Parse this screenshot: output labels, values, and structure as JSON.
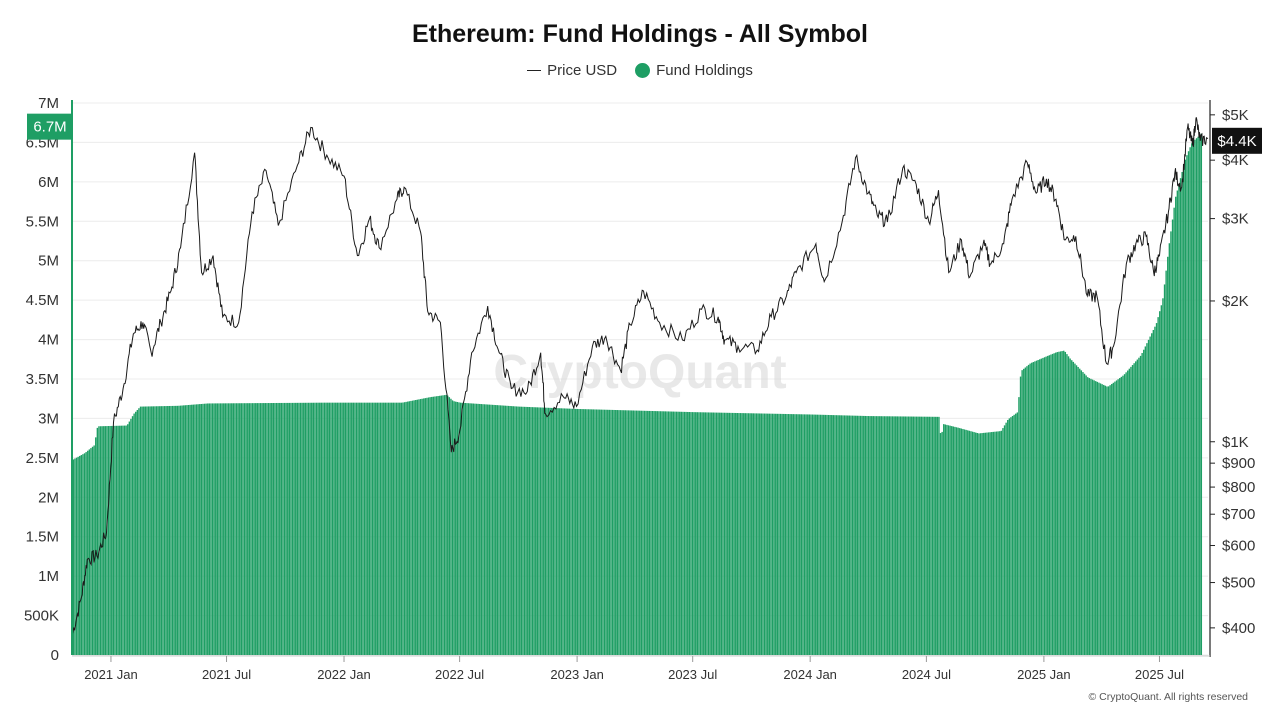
{
  "title": "Ethereum: Fund Holdings - All Symbol",
  "legend": {
    "price_label": "Price USD",
    "holdings_label": "Fund Holdings"
  },
  "watermark": "CryptoQuant",
  "copyright": "© CryptoQuant. All rights reserved",
  "colors": {
    "holdings": "#1e9e64",
    "price": "#1a1a1a",
    "grid": "#ececec",
    "axis": "#222222",
    "left_badge_bg": "#1e9e64",
    "right_badge_bg": "#111111"
  },
  "chart_data": {
    "type": "bar+line",
    "title": "Ethereum: Fund Holdings - All Symbol",
    "x_start": "2020-11-01",
    "x_end": "2025-09-15",
    "x_ticks": [
      {
        "date": "2021-01-01",
        "label": "2021 Jan"
      },
      {
        "date": "2021-07-01",
        "label": "2021 Jul"
      },
      {
        "date": "2022-01-01",
        "label": "2022 Jan"
      },
      {
        "date": "2022-07-01",
        "label": "2022 Jul"
      },
      {
        "date": "2023-01-01",
        "label": "2023 Jan"
      },
      {
        "date": "2023-07-01",
        "label": "2023 Jul"
      },
      {
        "date": "2024-01-01",
        "label": "2024 Jan"
      },
      {
        "date": "2024-07-01",
        "label": "2024 Jul"
      },
      {
        "date": "2025-01-01",
        "label": "2025 Jan"
      },
      {
        "date": "2025-07-01",
        "label": "2025 Jul"
      }
    ],
    "left_axis": {
      "name": "Fund Holdings",
      "scale": "linear",
      "range": [
        0,
        7000000
      ],
      "ticks": [
        {
          "value": 0,
          "label": "0"
        },
        {
          "value": 500000,
          "label": "500K"
        },
        {
          "value": 1000000,
          "label": "1M"
        },
        {
          "value": 1500000,
          "label": "1.5M"
        },
        {
          "value": 2000000,
          "label": "2M"
        },
        {
          "value": 2500000,
          "label": "2.5M"
        },
        {
          "value": 3000000,
          "label": "3M"
        },
        {
          "value": 3500000,
          "label": "3.5M"
        },
        {
          "value": 4000000,
          "label": "4M"
        },
        {
          "value": 4500000,
          "label": "4.5M"
        },
        {
          "value": 5000000,
          "label": "5M"
        },
        {
          "value": 5500000,
          "label": "5.5M"
        },
        {
          "value": 6000000,
          "label": "6M"
        },
        {
          "value": 6500000,
          "label": "6.5M"
        },
        {
          "value": 7000000,
          "label": "7M"
        }
      ],
      "current_value": 6700000,
      "current_label": "6.7M"
    },
    "right_axis": {
      "name": "Price USD",
      "scale": "log",
      "range": [
        350,
        5300
      ],
      "ticks": [
        {
          "value": 400,
          "label": "$400"
        },
        {
          "value": 500,
          "label": "$500"
        },
        {
          "value": 600,
          "label": "$600"
        },
        {
          "value": 700,
          "label": "$700"
        },
        {
          "value": 800,
          "label": "$800"
        },
        {
          "value": 900,
          "label": "$900"
        },
        {
          "value": 1000,
          "label": "$1K"
        },
        {
          "value": 2000,
          "label": "$2K"
        },
        {
          "value": 3000,
          "label": "$3K"
        },
        {
          "value": 4000,
          "label": "$4K"
        },
        {
          "value": 5000,
          "label": "$5K"
        }
      ],
      "current_value": 4400,
      "current_label": "$4.4K"
    },
    "series": [
      {
        "name": "Fund Holdings",
        "type": "bar",
        "axis": "left",
        "points": [
          [
            "2020-11-02",
            2480000
          ],
          [
            "2020-11-20",
            2560000
          ],
          [
            "2020-12-05",
            2660000
          ],
          [
            "2020-12-10",
            2900000
          ],
          [
            "2021-01-25",
            2910000
          ],
          [
            "2021-02-05",
            3060000
          ],
          [
            "2021-02-15",
            3150000
          ],
          [
            "2021-04-15",
            3160000
          ],
          [
            "2021-06-01",
            3190000
          ],
          [
            "2021-12-01",
            3200000
          ],
          [
            "2022-04-01",
            3200000
          ],
          [
            "2022-05-15",
            3270000
          ],
          [
            "2022-06-10",
            3300000
          ],
          [
            "2022-06-20",
            3220000
          ],
          [
            "2022-07-01",
            3200000
          ],
          [
            "2022-10-01",
            3150000
          ],
          [
            "2023-01-01",
            3120000
          ],
          [
            "2023-07-01",
            3080000
          ],
          [
            "2024-01-01",
            3050000
          ],
          [
            "2024-04-01",
            3030000
          ],
          [
            "2024-07-20",
            3020000
          ],
          [
            "2024-07-23",
            2720000
          ],
          [
            "2024-07-26",
            2930000
          ],
          [
            "2024-08-20",
            2880000
          ],
          [
            "2024-09-20",
            2810000
          ],
          [
            "2024-10-25",
            2840000
          ],
          [
            "2024-11-05",
            2990000
          ],
          [
            "2024-11-20",
            3080000
          ],
          [
            "2024-11-25",
            3600000
          ],
          [
            "2024-12-10",
            3700000
          ],
          [
            "2025-01-05",
            3790000
          ],
          [
            "2025-01-20",
            3840000
          ],
          [
            "2025-02-01",
            3860000
          ],
          [
            "2025-02-10",
            3760000
          ],
          [
            "2025-03-10",
            3520000
          ],
          [
            "2025-04-10",
            3400000
          ],
          [
            "2025-05-05",
            3550000
          ],
          [
            "2025-06-01",
            3800000
          ],
          [
            "2025-06-25",
            4200000
          ],
          [
            "2025-07-05",
            4500000
          ],
          [
            "2025-07-15",
            5200000
          ],
          [
            "2025-07-25",
            5800000
          ],
          [
            "2025-08-10",
            6300000
          ],
          [
            "2025-08-20",
            6500000
          ],
          [
            "2025-09-15",
            6700000
          ]
        ]
      },
      {
        "name": "Price USD",
        "type": "line",
        "axis": "right",
        "points": [
          [
            "2020-11-01",
            385
          ],
          [
            "2020-11-15",
            460
          ],
          [
            "2020-11-25",
            560
          ],
          [
            "2020-12-10",
            570
          ],
          [
            "2020-12-25",
            640
          ],
          [
            "2021-01-05",
            1100
          ],
          [
            "2021-01-20",
            1300
          ],
          [
            "2021-02-05",
            1700
          ],
          [
            "2021-02-20",
            1800
          ],
          [
            "2021-03-05",
            1550
          ],
          [
            "2021-03-20",
            1800
          ],
          [
            "2021-04-05",
            2100
          ],
          [
            "2021-04-20",
            2600
          ],
          [
            "2021-05-12",
            4150
          ],
          [
            "2021-05-23",
            2300
          ],
          [
            "2021-06-10",
            2500
          ],
          [
            "2021-06-25",
            1850
          ],
          [
            "2021-07-20",
            1800
          ],
          [
            "2021-08-10",
            3100
          ],
          [
            "2021-09-01",
            3800
          ],
          [
            "2021-09-20",
            2900
          ],
          [
            "2021-10-20",
            3900
          ],
          [
            "2021-11-10",
            4700
          ],
          [
            "2021-12-05",
            4100
          ],
          [
            "2022-01-01",
            3700
          ],
          [
            "2022-01-22",
            2500
          ],
          [
            "2022-02-10",
            3000
          ],
          [
            "2022-02-25",
            2600
          ],
          [
            "2022-03-25",
            3300
          ],
          [
            "2022-04-05",
            3500
          ],
          [
            "2022-05-01",
            2800
          ],
          [
            "2022-05-12",
            1900
          ],
          [
            "2022-06-01",
            1800
          ],
          [
            "2022-06-18",
            950
          ],
          [
            "2022-07-01",
            1050
          ],
          [
            "2022-07-20",
            1550
          ],
          [
            "2022-08-14",
            1950
          ],
          [
            "2022-09-01",
            1550
          ],
          [
            "2022-09-20",
            1300
          ],
          [
            "2022-10-15",
            1280
          ],
          [
            "2022-11-05",
            1550
          ],
          [
            "2022-11-12",
            1150
          ],
          [
            "2022-12-10",
            1250
          ],
          [
            "2022-12-31",
            1190
          ],
          [
            "2023-01-25",
            1600
          ],
          [
            "2023-02-15",
            1680
          ],
          [
            "2023-03-10",
            1420
          ],
          [
            "2023-03-25",
            1780
          ],
          [
            "2023-04-15",
            2100
          ],
          [
            "2023-05-10",
            1800
          ],
          [
            "2023-06-15",
            1650
          ],
          [
            "2023-07-15",
            1920
          ],
          [
            "2023-08-10",
            1850
          ],
          [
            "2023-08-20",
            1650
          ],
          [
            "2023-09-10",
            1600
          ],
          [
            "2023-10-10",
            1570
          ],
          [
            "2023-11-01",
            1850
          ],
          [
            "2023-11-25",
            2050
          ],
          [
            "2023-12-10",
            2300
          ],
          [
            "2024-01-10",
            2650
          ],
          [
            "2024-01-23",
            2200
          ],
          [
            "2024-02-20",
            2950
          ],
          [
            "2024-03-12",
            4050
          ],
          [
            "2024-04-01",
            3400
          ],
          [
            "2024-04-15",
            3050
          ],
          [
            "2024-05-01",
            2950
          ],
          [
            "2024-05-25",
            3850
          ],
          [
            "2024-06-15",
            3550
          ],
          [
            "2024-07-05",
            2950
          ],
          [
            "2024-07-20",
            3450
          ],
          [
            "2024-08-05",
            2300
          ],
          [
            "2024-08-25",
            2700
          ],
          [
            "2024-09-07",
            2250
          ],
          [
            "2024-09-28",
            2650
          ],
          [
            "2024-10-10",
            2400
          ],
          [
            "2024-10-30",
            2650
          ],
          [
            "2024-11-12",
            3300
          ],
          [
            "2024-12-06",
            3950
          ],
          [
            "2024-12-20",
            3400
          ],
          [
            "2025-01-05",
            3650
          ],
          [
            "2025-01-20",
            3300
          ],
          [
            "2025-02-03",
            2700
          ],
          [
            "2025-02-20",
            2750
          ],
          [
            "2025-03-10",
            2050
          ],
          [
            "2025-03-25",
            2050
          ],
          [
            "2025-04-09",
            1470
          ],
          [
            "2025-04-20",
            1600
          ],
          [
            "2025-05-10",
            2400
          ],
          [
            "2025-05-25",
            2650
          ],
          [
            "2025-06-10",
            2750
          ],
          [
            "2025-06-22",
            2300
          ],
          [
            "2025-07-01",
            2500
          ],
          [
            "2025-07-15",
            3100
          ],
          [
            "2025-07-25",
            3750
          ],
          [
            "2025-08-05",
            3500
          ],
          [
            "2025-08-14",
            4700
          ],
          [
            "2025-08-22",
            4300
          ],
          [
            "2025-08-27",
            4900
          ],
          [
            "2025-09-03",
            4400
          ],
          [
            "2025-09-15",
            4450
          ]
        ]
      }
    ]
  }
}
